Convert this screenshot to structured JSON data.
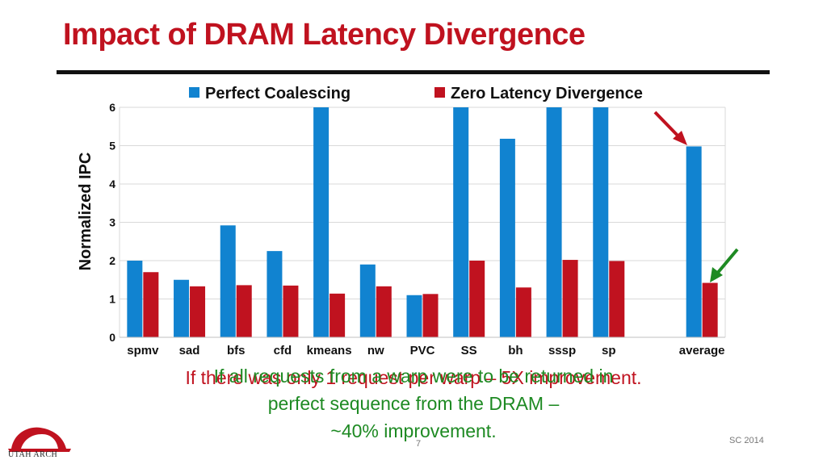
{
  "slide": {
    "title": "Impact of DRAM Latency Divergence",
    "caption_red": "If there was only 1 request per warp – 5X improvement.",
    "caption_green_lines": [
      "If all requests from a warp were to be returned in",
      "perfect sequence from the DRAM –",
      "~40% improvement."
    ],
    "slide_number": "7",
    "conference": "SC 2014",
    "logo_text": "UTAH ARCH",
    "colors": {
      "title": "#c0121f",
      "green": "#1e8a23",
      "blue": "#1183d0",
      "red": "#c0121f"
    },
    "icons": [
      "red-arrow-icon",
      "green-arrow-icon",
      "utah-arch-logo-icon"
    ]
  },
  "chart_data": {
    "type": "bar",
    "categories": [
      "spmv",
      "sad",
      "bfs",
      "cfd",
      "kmeans",
      "nw",
      "PVC",
      "SS",
      "bh",
      "sssp",
      "sp",
      "",
      "average"
    ],
    "series": [
      {
        "name": "Perfect Coalescing",
        "color": "#1183d0",
        "values": [
          2.0,
          1.5,
          2.92,
          2.25,
          6.0,
          1.9,
          1.1,
          6.0,
          5.18,
          6.0,
          6.0,
          null,
          4.98
        ]
      },
      {
        "name": "Zero Latency Divergence",
        "color": "#c0121f",
        "values": [
          1.7,
          1.33,
          1.36,
          1.35,
          1.14,
          1.33,
          1.13,
          2.0,
          1.3,
          2.02,
          1.99,
          null,
          1.42
        ]
      }
    ],
    "ylabel": "Normalized IPC",
    "xlabel": "",
    "ylim": [
      0,
      6
    ],
    "yticks": [
      0,
      1,
      2,
      3,
      4,
      5,
      6
    ],
    "grid": true,
    "legend_position": "top"
  }
}
